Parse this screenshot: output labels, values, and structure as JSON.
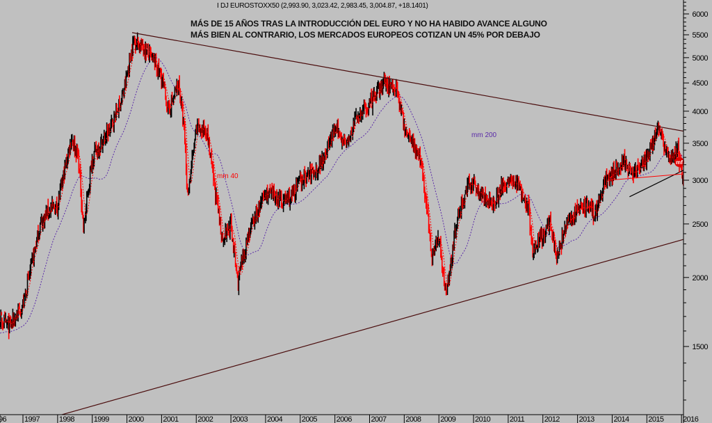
{
  "chart_data": {
    "type": "candlestick",
    "title": "I DJ EUROSTOXX50 (2,993.90, 3,023.42, 2,983.45, 3,004.87, +18.1401)",
    "annotations": [
      "MÁS DE 15 AÑOS TRAS LA INTRODUCCIÓN DEL EURO Y NO HA HABIDO AVANCE ALGUNO",
      "MÁS BIEN AL CONTRARIO, LOS MERCADOS EUROPEOS COTIZAN UN 45% POR DEBAJO"
    ],
    "ma_labels": {
      "ma40": "mm 40",
      "ma200": "mm 200"
    },
    "marker_label": "mf",
    "yscale": "log",
    "ylim": [
      1150,
      6300
    ],
    "y_ticks": [
      1500,
      2000,
      2500,
      3000,
      3500,
      4000,
      4500,
      5000,
      5500,
      6000
    ],
    "x_ticks": [
      "96",
      "1997",
      "1998",
      "1999",
      "2000",
      "2001",
      "2002",
      "2003",
      "2004",
      "2005",
      "2006",
      "2007",
      "2008",
      "2009",
      "2010",
      "2011",
      "2012",
      "2013",
      "2014",
      "2015",
      "2016"
    ],
    "xlim": [
      1996.34,
      2016.07
    ],
    "price_keypoints": [
      [
        1995.9,
        1600
      ],
      [
        1996.3,
        1680
      ],
      [
        1996.6,
        1630
      ],
      [
        1997.0,
        1780
      ],
      [
        1997.5,
        2500
      ],
      [
        1997.75,
        2650
      ],
      [
        1998.0,
        2700
      ],
      [
        1998.4,
        3600
      ],
      [
        1998.6,
        3300
      ],
      [
        1998.75,
        2450
      ],
      [
        1999.0,
        3300
      ],
      [
        1999.5,
        3700
      ],
      [
        1999.9,
        4300
      ],
      [
        2000.2,
        5400
      ],
      [
        2000.5,
        5200
      ],
      [
        2000.8,
        4900
      ],
      [
        2001.0,
        4600
      ],
      [
        2001.2,
        4000
      ],
      [
        2001.5,
        4500
      ],
      [
        2001.68,
        3500
      ],
      [
        2001.74,
        2800
      ],
      [
        2002.0,
        3700
      ],
      [
        2002.3,
        3700
      ],
      [
        2002.5,
        3000
      ],
      [
        2002.75,
        2350
      ],
      [
        2003.0,
        2500
      ],
      [
        2003.2,
        1950
      ],
      [
        2003.5,
        2400
      ],
      [
        2003.75,
        2600
      ],
      [
        2004.0,
        2850
      ],
      [
        2004.5,
        2750
      ],
      [
        2004.75,
        2800
      ],
      [
        2005.0,
        3000
      ],
      [
        2005.5,
        3150
      ],
      [
        2006.0,
        3700
      ],
      [
        2006.4,
        3500
      ],
      [
        2006.6,
        3900
      ],
      [
        2007.0,
        4100
      ],
      [
        2007.4,
        4500
      ],
      [
        2007.8,
        4400
      ],
      [
        2008.0,
        3700
      ],
      [
        2008.2,
        3600
      ],
      [
        2008.5,
        3200
      ],
      [
        2008.7,
        2500
      ],
      [
        2008.8,
        2200
      ],
      [
        2009.0,
        2400
      ],
      [
        2009.2,
        1850
      ],
      [
        2009.5,
        2500
      ],
      [
        2009.8,
        2900
      ],
      [
        2010.0,
        2950
      ],
      [
        2010.3,
        2800
      ],
      [
        2010.5,
        2700
      ],
      [
        2010.8,
        2900
      ],
      [
        2011.0,
        3000
      ],
      [
        2011.3,
        2950
      ],
      [
        2011.6,
        2650
      ],
      [
        2011.72,
        2150
      ],
      [
        2011.9,
        2400
      ],
      [
        2012.0,
        2350
      ],
      [
        2012.2,
        2550
      ],
      [
        2012.4,
        2150
      ],
      [
        2012.6,
        2400
      ],
      [
        2012.8,
        2550
      ],
      [
        2013.0,
        2650
      ],
      [
        2013.3,
        2700
      ],
      [
        2013.5,
        2600
      ],
      [
        2013.8,
        3000
      ],
      [
        2014.0,
        3100
      ],
      [
        2014.4,
        3250
      ],
      [
        2014.6,
        3050
      ],
      [
        2014.8,
        3150
      ],
      [
        2015.0,
        3250
      ],
      [
        2015.3,
        3750
      ],
      [
        2015.5,
        3500
      ],
      [
        2015.7,
        3250
      ],
      [
        2015.9,
        3400
      ],
      [
        2016.0,
        3100
      ],
      [
        2016.1,
        2750
      ],
      [
        2016.18,
        3005
      ]
    ],
    "trendlines": [
      {
        "name": "upper-resistance",
        "from": [
          2000.15,
          5550
        ],
        "to": [
          2016.07,
          3680
        ]
      },
      {
        "name": "lower-support",
        "from": [
          1998.1,
          1128
        ],
        "to": [
          2016.07,
          2345
        ]
      },
      {
        "name": "short-support",
        "from": [
          2014.5,
          2800
        ],
        "to": [
          2016.07,
          3130
        ]
      }
    ],
    "colors": {
      "background": "#c0c0c0",
      "up": "#000000",
      "down": "#ff0000",
      "ma40": "#ff0000",
      "ma200": "#5a2aa8",
      "trend": "#4a0c0c"
    }
  }
}
